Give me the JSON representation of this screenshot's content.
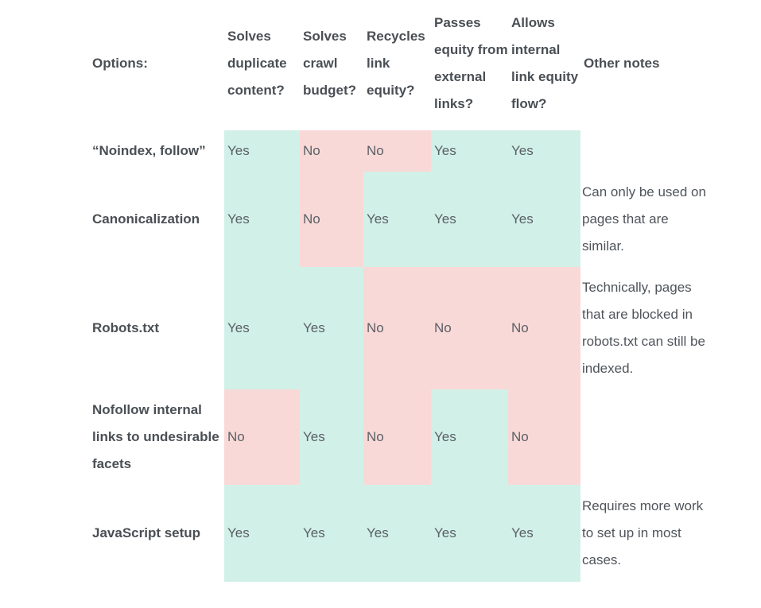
{
  "table": {
    "headers": [
      "Options:",
      "Solves duplicate content?",
      "Solves crawl budget?",
      "Recycles link equity?",
      "Passes equity from external links?",
      "Allows internal link equity flow?",
      "Other notes"
    ],
    "rows": [
      {
        "option": "“Noindex, follow”",
        "values": [
          "Yes",
          "No",
          "No",
          "Yes",
          "Yes"
        ],
        "notes": ""
      },
      {
        "option": "Canonicalization",
        "values": [
          "Yes",
          "No",
          "Yes",
          "Yes",
          "Yes"
        ],
        "notes": "Can only be used on pages that are similar."
      },
      {
        "option": "Robots.txt",
        "values": [
          "Yes",
          "Yes",
          "No",
          "No",
          "No"
        ],
        "notes": "Technically, pages that are blocked in robots.txt can still be indexed."
      },
      {
        "option": "Nofollow internal links to undesirable facets",
        "values": [
          "No",
          "Yes",
          "No",
          "Yes",
          "No"
        ],
        "notes": ""
      },
      {
        "option": "JavaScript setup",
        "values": [
          "Yes",
          "Yes",
          "Yes",
          "Yes",
          "Yes"
        ],
        "notes": "Requires more work to set up in most cases."
      }
    ]
  },
  "colors": {
    "yes": "#d1f0e8",
    "no": "#f9d9d7",
    "text": "#4a4f55"
  }
}
